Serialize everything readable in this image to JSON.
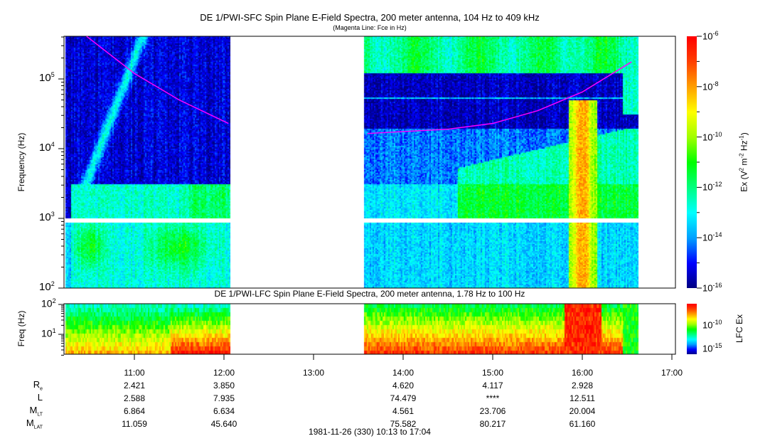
{
  "chart_data": [
    {
      "type": "heatmap",
      "title": "DE 1/PWI-SFC  Spin Plane E-Field Spectra, 200 meter antenna, 104 Hz to 409 kHz",
      "subtitle": "(Magenta Line: Fce in Hz)",
      "ylabel": "Frequency (Hz)",
      "yscale": "log",
      "ylim": [
        100,
        409000
      ],
      "y_ticks": [
        {
          "base": "10",
          "exp": "2"
        },
        {
          "base": "10",
          "exp": "3"
        },
        {
          "base": "10",
          "exp": "4"
        },
        {
          "base": "10",
          "exp": "5"
        }
      ],
      "xlim": [
        "10:13",
        "17:04"
      ],
      "data_intervals": [
        [
          "10:13",
          "12:04"
        ],
        [
          "13:33",
          "16:37"
        ]
      ],
      "colorbar": {
        "label": "Ex (V2 m-2 Hz-1)",
        "label_parts": {
          "a": "Ex (V",
          "b": "2",
          "c": " m",
          "d": "-2",
          "e": " Hz",
          "f": "-1",
          "g": ")"
        },
        "scale": "log",
        "range": [
          1e-16,
          1e-06
        ],
        "ticks": [
          {
            "base": "10",
            "exp": "-6"
          },
          {
            "base": "10",
            "exp": "-8"
          },
          {
            "base": "10",
            "exp": "-10"
          },
          {
            "base": "10",
            "exp": "-12"
          },
          {
            "base": "10",
            "exp": "-14"
          },
          {
            "base": "10",
            "exp": "-16"
          }
        ],
        "colors": [
          "#00007f",
          "#0000ff",
          "#00a0ff",
          "#00ffff",
          "#00ff80",
          "#00ff00",
          "#a0ff00",
          "#ffff00",
          "#ffa000",
          "#ff4000",
          "#ff0000"
        ]
      },
      "fce_line": {
        "color": "#ff00ff",
        "segments": [
          [
            [
              "10:28",
              409000
            ],
            [
              "11:00",
              120000
            ],
            [
              "11:30",
              50000
            ],
            [
              "12:03",
              23000
            ]
          ],
          [
            [
              "13:36",
              16500
            ],
            [
              "14:30",
              19000
            ],
            [
              "15:00",
              23000
            ],
            [
              "15:30",
              35000
            ],
            [
              "16:00",
              65000
            ],
            [
              "16:33",
              176000
            ]
          ]
        ]
      }
    },
    {
      "type": "heatmap",
      "title": "DE 1/PWI-LFC  Spin Plane E-Field Spectra, 200 meter antenna, 1.78 Hz to 100 Hz",
      "ylabel": "Freq (Hz)",
      "yscale": "log",
      "ylim": [
        1.78,
        100
      ],
      "y_ticks": [
        {
          "base": "10",
          "exp": "1"
        },
        {
          "base": "10",
          "exp": "2"
        }
      ],
      "colorbar": {
        "label": "LFC Ex",
        "scale": "log",
        "ticks": [
          {
            "base": "10",
            "exp": "-10"
          },
          {
            "base": "10",
            "exp": "-15"
          }
        ]
      }
    }
  ],
  "x_ticks": [
    "11:00",
    "12:00",
    "13:00",
    "14:00",
    "15:00",
    "16:00",
    "17:00"
  ],
  "ephemeris": {
    "labels": [
      {
        "main": "R",
        "sub": "e"
      },
      {
        "main": "L",
        "sub": ""
      },
      {
        "main": "M",
        "sub": "LT"
      },
      {
        "main": "M",
        "sub": "LAT"
      }
    ],
    "columns": [
      "11:00",
      "12:00",
      "14:00",
      "15:00",
      "16:00"
    ],
    "rows": [
      [
        "2.421",
        "3.850",
        "4.620",
        "4.117",
        "2.928"
      ],
      [
        "2.588",
        "7.935",
        "74.479",
        "****",
        "12.511"
      ],
      [
        "6.864",
        "6.634",
        "4.561",
        "23.706",
        "20.004"
      ],
      [
        "11.059",
        "45.640",
        "75.582",
        "80.217",
        "61.160"
      ]
    ]
  },
  "footer": "1981-11-26 (330) 10:13 to 17:04"
}
